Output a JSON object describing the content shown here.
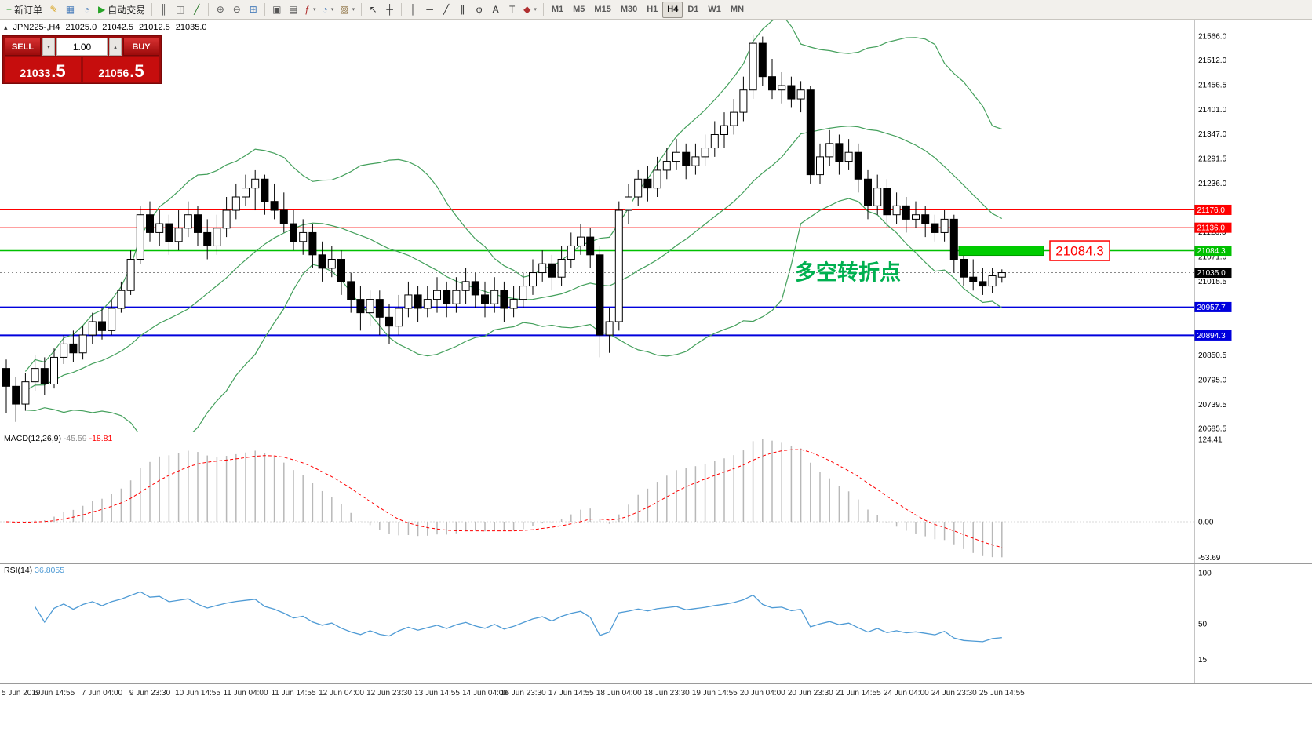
{
  "toolbar": {
    "items": [
      {
        "type": "labeled",
        "name": "new-order-button",
        "glyph": "+",
        "glyph_color": "#1fa01f",
        "label": "新订单"
      },
      {
        "type": "icon",
        "name": "metaeditor-icon",
        "glyph": "✎",
        "glyph_color": "#d8a21a"
      },
      {
        "type": "icon",
        "name": "market-watch-icon",
        "glyph": "▦",
        "glyph_color": "#4a7ebb"
      },
      {
        "type": "icon",
        "name": "data-window-icon",
        "glyph": "◔",
        "glyph_color": "#4a7ebb"
      },
      {
        "type": "labeled",
        "name": "auto-trading-button",
        "glyph": "▶",
        "glyph_color": "#28a428",
        "label": "自动交易"
      },
      {
        "type": "sep"
      },
      {
        "type": "icon",
        "name": "bar-chart-icon",
        "glyph": "║",
        "glyph_color": "#555555"
      },
      {
        "type": "icon",
        "name": "candlestick-chart-icon",
        "glyph": "◫",
        "glyph_color": "#555555"
      },
      {
        "type": "icon",
        "name": "line-chart-icon",
        "glyph": "╱",
        "glyph_color": "#2c7a2c"
      },
      {
        "type": "sep"
      },
      {
        "type": "icon",
        "name": "zoom-in-icon",
        "glyph": "⊕",
        "glyph_color": "#555555"
      },
      {
        "type": "icon",
        "name": "zoom-out-icon",
        "glyph": "⊖",
        "glyph_color": "#555555"
      },
      {
        "type": "icon",
        "name": "tile-windows-icon",
        "glyph": "⊞",
        "glyph_color": "#4a7ebb"
      },
      {
        "type": "sep"
      },
      {
        "type": "icon",
        "name": "auto-scroll-icon",
        "glyph": "▣",
        "glyph_color": "#555555"
      },
      {
        "type": "icon",
        "name": "chart-shift-icon",
        "glyph": "▤",
        "glyph_color": "#555555"
      },
      {
        "type": "dropdown",
        "name": "indicators-menu",
        "glyph": "ƒ",
        "glyph_color": "#b03030",
        "caret": "▾"
      },
      {
        "type": "dropdown",
        "name": "periods-menu",
        "glyph": "◔",
        "glyph_color": "#4a7ebb",
        "caret": "▾"
      },
      {
        "type": "dropdown",
        "name": "templates-menu",
        "glyph": "▨",
        "glyph_color": "#8a6d3b",
        "caret": "▾"
      },
      {
        "type": "sep"
      },
      {
        "type": "icon",
        "name": "cursor-icon",
        "glyph": "↖",
        "glyph_color": "#333333"
      },
      {
        "type": "icon",
        "name": "crosshair-icon",
        "glyph": "┼",
        "glyph_color": "#333333"
      },
      {
        "type": "sep"
      },
      {
        "type": "icon",
        "name": "vertical-line-icon",
        "glyph": "│",
        "glyph_color": "#333333"
      },
      {
        "type": "icon",
        "name": "horizontal-line-icon",
        "glyph": "─",
        "glyph_color": "#333333"
      },
      {
        "type": "icon",
        "name": "trendline-icon",
        "glyph": "╱",
        "glyph_color": "#333333"
      },
      {
        "type": "icon",
        "name": "equidistant-channel-icon",
        "glyph": "∥",
        "glyph_color": "#333333"
      },
      {
        "type": "icon",
        "name": "fibonacci-icon",
        "glyph": "φ",
        "glyph_color": "#333333"
      },
      {
        "type": "icon",
        "name": "text-icon",
        "glyph": "A",
        "glyph_color": "#333333"
      },
      {
        "type": "icon",
        "name": "text-label-icon",
        "glyph": "T",
        "glyph_color": "#333333"
      },
      {
        "type": "dropdown",
        "name": "arrows-menu",
        "glyph": "◆",
        "glyph_color": "#b03030",
        "caret": "▾"
      },
      {
        "type": "sep"
      },
      {
        "type": "tf",
        "name": "timeframe-m1",
        "label": "M1"
      },
      {
        "type": "tf",
        "name": "timeframe-m5",
        "label": "M5"
      },
      {
        "type": "tf",
        "name": "timeframe-m15",
        "label": "M15"
      },
      {
        "type": "tf",
        "name": "timeframe-m30",
        "label": "M30"
      },
      {
        "type": "tf",
        "name": "timeframe-h1",
        "label": "H1"
      },
      {
        "type": "tf",
        "name": "timeframe-h4",
        "label": "H4",
        "active": true
      },
      {
        "type": "tf",
        "name": "timeframe-d1",
        "label": "D1"
      },
      {
        "type": "tf",
        "name": "timeframe-w1",
        "label": "W1"
      },
      {
        "type": "tf",
        "name": "timeframe-mn",
        "label": "MN"
      }
    ],
    "right_items": [
      {
        "type": "mag",
        "name": "search-icon"
      },
      {
        "type": "icon",
        "name": "collapse-toolbar-icon",
        "glyph": "▴",
        "glyph_color": "#555555"
      }
    ]
  },
  "symbol_label": {
    "toggle_glyph": "▴",
    "symbol": "JPN225-,H4",
    "open": "21025.0",
    "high": "21042.5",
    "low": "21012.5",
    "close": "21035.0"
  },
  "trade_panel": {
    "sell_label": "SELL",
    "buy_label": "BUY",
    "lot_value": "1.00",
    "lot_down_glyph": "▾",
    "lot_up_glyph": "▴",
    "sell_price": {
      "main": "21033",
      "pips": ".5"
    },
    "buy_price": {
      "main": "21056",
      "pips": ".5"
    }
  },
  "chart_data": {
    "type": "candlestick",
    "symbol": "JPN225-",
    "timeframe": "H4",
    "price_range_visible": [
      20685.5,
      21566.0
    ],
    "y_ticks": [
      21566.0,
      21512.0,
      21456.5,
      21401.0,
      21347.0,
      21291.5,
      21236.0,
      21126.5,
      21071.0,
      21015.5,
      20850.5,
      20795.0,
      20739.5,
      20685.5
    ],
    "x_labels": [
      "5 Jun 2019",
      "6 Jun 14:55",
      "7 Jun 04:00",
      "9 Jun 23:30",
      "10 Jun 14:55",
      "11 Jun 04:00",
      "11 Jun 14:55",
      "12 Jun 04:00",
      "12 Jun 23:30",
      "13 Jun 14:55",
      "14 Jun 04:00",
      "16 Jun 23:30",
      "17 Jun 14:55",
      "18 Jun 04:00",
      "18 Jun 23:30",
      "19 Jun 14:55",
      "20 Jun 04:00",
      "20 Jun 23:30",
      "21 Jun 14:55",
      "24 Jun 04:00",
      "24 Jun 23:30",
      "25 Jun 14:55"
    ],
    "ohlc": [
      [
        20820,
        20840,
        20720,
        20780
      ],
      [
        20780,
        20800,
        20700,
        20740
      ],
      [
        20740,
        20810,
        20725,
        20790
      ],
      [
        20790,
        20850,
        20770,
        20820
      ],
      [
        20820,
        20845,
        20760,
        20785
      ],
      [
        20785,
        20865,
        20775,
        20845
      ],
      [
        20845,
        20895,
        20830,
        20875
      ],
      [
        20875,
        20905,
        20835,
        20855
      ],
      [
        20855,
        20915,
        20840,
        20895
      ],
      [
        20895,
        20945,
        20875,
        20925
      ],
      [
        20925,
        20955,
        20885,
        20905
      ],
      [
        20905,
        20975,
        20895,
        20955
      ],
      [
        20955,
        21015,
        20945,
        20995
      ],
      [
        20995,
        21085,
        20985,
        21065
      ],
      [
        21065,
        21185,
        21055,
        21165
      ],
      [
        21165,
        21195,
        21105,
        21125
      ],
      [
        21125,
        21175,
        21095,
        21145
      ],
      [
        21145,
        21165,
        21075,
        21105
      ],
      [
        21105,
        21175,
        21085,
        21135
      ],
      [
        21135,
        21195,
        21115,
        21165
      ],
      [
        21165,
        21185,
        21095,
        21125
      ],
      [
        21125,
        21155,
        21065,
        21095
      ],
      [
        21095,
        21165,
        21075,
        21135
      ],
      [
        21135,
        21205,
        21115,
        21175
      ],
      [
        21175,
        21235,
        21155,
        21205
      ],
      [
        21205,
        21255,
        21185,
        21225
      ],
      [
        21225,
        21265,
        21175,
        21245
      ],
      [
        21245,
        21255,
        21165,
        21195
      ],
      [
        21195,
        21235,
        21155,
        21175
      ],
      [
        21175,
        21215,
        21125,
        21145
      ],
      [
        21145,
        21175,
        21085,
        21105
      ],
      [
        21105,
        21155,
        21075,
        21125
      ],
      [
        21125,
        21145,
        21045,
        21075
      ],
      [
        21075,
        21105,
        21015,
        21045
      ],
      [
        21045,
        21095,
        21025,
        21065
      ],
      [
        21065,
        21085,
        20985,
        21015
      ],
      [
        21015,
        21035,
        20945,
        20975
      ],
      [
        20975,
        21005,
        20905,
        20945
      ],
      [
        20945,
        20995,
        20915,
        20975
      ],
      [
        20975,
        20995,
        20895,
        20935
      ],
      [
        20935,
        20965,
        20875,
        20915
      ],
      [
        20915,
        20985,
        20895,
        20955
      ],
      [
        20955,
        21015,
        20935,
        20985
      ],
      [
        20985,
        21005,
        20925,
        20955
      ],
      [
        20955,
        21005,
        20935,
        20975
      ],
      [
        20975,
        21025,
        20945,
        20995
      ],
      [
        20995,
        21015,
        20935,
        20965
      ],
      [
        20965,
        21025,
        20945,
        20995
      ],
      [
        20995,
        21045,
        20965,
        21015
      ],
      [
        21015,
        21035,
        20955,
        20985
      ],
      [
        20985,
        21015,
        20935,
        20965
      ],
      [
        20965,
        21025,
        20945,
        20995
      ],
      [
        20995,
        21015,
        20925,
        20955
      ],
      [
        20955,
        21005,
        20935,
        20975
      ],
      [
        20975,
        21035,
        20955,
        21005
      ],
      [
        21005,
        21065,
        20985,
        21035
      ],
      [
        21035,
        21085,
        21015,
        21055
      ],
      [
        21055,
        21075,
        20995,
        21025
      ],
      [
        21025,
        21095,
        21005,
        21065
      ],
      [
        21065,
        21125,
        21045,
        21095
      ],
      [
        21095,
        21145,
        21075,
        21115
      ],
      [
        21115,
        21135,
        21045,
        21075
      ],
      [
        21075,
        21095,
        20845,
        20895
      ],
      [
        20895,
        20955,
        20855,
        20925
      ],
      [
        20925,
        21195,
        20905,
        21175
      ],
      [
        21175,
        21235,
        21145,
        21205
      ],
      [
        21205,
        21265,
        21185,
        21245
      ],
      [
        21245,
        21275,
        21195,
        21225
      ],
      [
        21225,
        21295,
        21205,
        21265
      ],
      [
        21265,
        21315,
        21245,
        21285
      ],
      [
        21285,
        21335,
        21265,
        21305
      ],
      [
        21305,
        21325,
        21245,
        21275
      ],
      [
        21275,
        21325,
        21255,
        21295
      ],
      [
        21295,
        21345,
        21275,
        21315
      ],
      [
        21315,
        21375,
        21295,
        21345
      ],
      [
        21345,
        21395,
        21315,
        21365
      ],
      [
        21365,
        21425,
        21345,
        21395
      ],
      [
        21395,
        21475,
        21375,
        21445
      ],
      [
        21445,
        21570,
        21425,
        21550
      ],
      [
        21550,
        21565,
        21455,
        21475
      ],
      [
        21475,
        21515,
        21425,
        21445
      ],
      [
        21445,
        21485,
        21415,
        21455
      ],
      [
        21455,
        21475,
        21405,
        21425
      ],
      [
        21425,
        21465,
        21395,
        21445
      ],
      [
        21445,
        21455,
        21235,
        21255
      ],
      [
        21255,
        21325,
        21235,
        21295
      ],
      [
        21295,
        21355,
        21275,
        21325
      ],
      [
        21325,
        21345,
        21255,
        21285
      ],
      [
        21285,
        21335,
        21265,
        21305
      ],
      [
        21305,
        21325,
        21215,
        21245
      ],
      [
        21245,
        21265,
        21155,
        21185
      ],
      [
        21185,
        21255,
        21165,
        21225
      ],
      [
        21225,
        21245,
        21135,
        21165
      ],
      [
        21165,
        21215,
        21145,
        21185
      ],
      [
        21185,
        21205,
        21125,
        21155
      ],
      [
        21155,
        21195,
        21135,
        21165
      ],
      [
        21165,
        21185,
        21115,
        21145
      ],
      [
        21145,
        21165,
        21105,
        21125
      ],
      [
        21125,
        21175,
        21105,
        21155
      ],
      [
        21155,
        21165,
        21035,
        21065
      ],
      [
        21065,
        21095,
        21005,
        21025
      ],
      [
        21025,
        21065,
        20995,
        21015
      ],
      [
        21015,
        21045,
        20985,
        21005
      ],
      [
        21005,
        21045,
        20990,
        21028
      ],
      [
        21025,
        21042.5,
        21012.5,
        21035
      ]
    ],
    "horizontal_lines": [
      {
        "price": 21176.0,
        "color": "#ff0000",
        "width": 1,
        "tag": "21176.0",
        "tag_bg": "#ff0000"
      },
      {
        "price": 21136.0,
        "color": "#ff0000",
        "width": 1,
        "tag": "21136.0",
        "tag_bg": "#ff0000"
      },
      {
        "price": 21084.3,
        "color": "#00c000",
        "width": 1.5,
        "tag": "21084.3",
        "tag_bg": "#00c000"
      },
      {
        "price": 20957.7,
        "color": "#0000dd",
        "width": 1.5,
        "tag": "20957.7",
        "tag_bg": "#0000dd"
      },
      {
        "price": 20894.3,
        "color": "#0000dd",
        "width": 2,
        "tag": "20894.3",
        "tag_bg": "#0000dd"
      }
    ],
    "bid": {
      "price": 21035.0,
      "tag": "21035.0",
      "tag_bg": "#000000",
      "line_color": "#888888"
    },
    "bollinger": {
      "period": 20,
      "deviation": 2,
      "color": "#44a05c"
    },
    "candle_colors": {
      "bull_fill": "#ffffff",
      "bear_fill": "#000000",
      "outline": "#000000"
    },
    "annotation": {
      "text": "多空转折点",
      "text_color": "#00b050",
      "box_label": "21084.3",
      "box_color": "#ff0000",
      "price": 21084.3,
      "band_color": "#00cc00"
    },
    "macd": {
      "title": "MACD(12,26,9)",
      "value": "-45.59",
      "signal_value": "-18.81",
      "value_color": "#909090",
      "signal_color": "#ff0000",
      "hist_color": "#b8b8b8",
      "scale_ticks": [
        "124.41",
        "0.00",
        "-53.69"
      ],
      "scale_values": [
        124.41,
        0,
        -53.69
      ],
      "params": [
        12,
        26,
        9
      ]
    },
    "rsi": {
      "title": "RSI(14)",
      "value": "36.8055",
      "color": "#4f9bd5",
      "period": 14,
      "scale_ticks": [
        "100",
        "50",
        "15"
      ],
      "scale_values": [
        100,
        50,
        15
      ]
    }
  }
}
